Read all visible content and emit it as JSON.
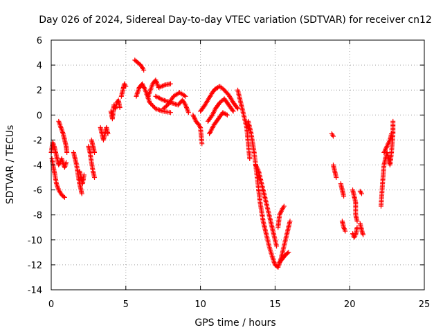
{
  "chart_data": {
    "type": "scatter",
    "title": "Day 026 of 2024, Sidereal Day-to-day VTEC variation (SDTVAR) for receiver cn12",
    "xlabel": "GPS time / hours",
    "ylabel": "SDTVAR / TECUs",
    "xlim": [
      0,
      25
    ],
    "ylim": [
      -14,
      6
    ],
    "xticks": [
      0,
      5,
      10,
      15,
      20,
      25
    ],
    "yticks": [
      -14,
      -12,
      -10,
      -8,
      -6,
      -4,
      -2,
      0,
      2,
      4,
      6
    ],
    "xtick_labels": [
      "0",
      "5",
      "10",
      "15",
      "20",
      "25"
    ],
    "ytick_labels": [
      "-14",
      "-12",
      "-10",
      "-8",
      "-6",
      "-4",
      "-2",
      "0",
      "2",
      "4",
      "6"
    ],
    "grid": true,
    "marker": "+",
    "color": "#ff0000",
    "series": [
      {
        "name": "SDTVAR",
        "segments": [
          [
            [
              0.0,
              -3.0
            ],
            [
              0.1,
              -2.2
            ],
            [
              0.2,
              -2.5
            ],
            [
              0.3,
              -3.0
            ],
            [
              0.4,
              -3.5
            ],
            [
              0.5,
              -4.0
            ],
            [
              0.6,
              -3.8
            ],
            [
              0.7,
              -3.5
            ],
            [
              0.8,
              -3.9
            ],
            [
              0.9,
              -4.2
            ],
            [
              1.0,
              -3.8
            ]
          ],
          [
            [
              0.05,
              -3.5
            ],
            [
              0.15,
              -4.2
            ],
            [
              0.25,
              -4.8
            ],
            [
              0.35,
              -5.5
            ],
            [
              0.5,
              -6.0
            ],
            [
              0.7,
              -6.4
            ],
            [
              0.9,
              -6.6
            ]
          ],
          [
            [
              0.5,
              -0.5
            ],
            [
              0.65,
              -1.0
            ],
            [
              0.8,
              -1.5
            ],
            [
              0.9,
              -2.0
            ],
            [
              1.0,
              -2.5
            ],
            [
              1.05,
              -3.0
            ]
          ],
          [
            [
              1.5,
              -3.0
            ],
            [
              1.6,
              -3.5
            ],
            [
              1.7,
              -4.0
            ],
            [
              1.8,
              -4.8
            ],
            [
              1.9,
              -5.5
            ],
            [
              2.0,
              -6.0
            ],
            [
              2.05,
              -6.3
            ]
          ],
          [
            [
              1.9,
              -4.5
            ],
            [
              2.0,
              -5.0
            ],
            [
              2.1,
              -5.5
            ],
            [
              2.2,
              -4.8
            ]
          ],
          [
            [
              2.5,
              -2.5
            ],
            [
              2.6,
              -3.0
            ],
            [
              2.7,
              -3.8
            ],
            [
              2.8,
              -4.5
            ],
            [
              2.9,
              -5.0
            ]
          ],
          [
            [
              2.7,
              -2.0
            ],
            [
              2.8,
              -2.5
            ],
            [
              2.9,
              -3.0
            ]
          ],
          [
            [
              3.3,
              -1.0
            ],
            [
              3.4,
              -1.5
            ],
            [
              3.5,
              -2.0
            ],
            [
              3.6,
              -1.5
            ],
            [
              3.7,
              -1.0
            ],
            [
              3.8,
              -1.5
            ]
          ],
          [
            [
              4.0,
              0.3
            ],
            [
              4.1,
              -0.3
            ],
            [
              4.2,
              0.8
            ],
            [
              4.3,
              0.5
            ],
            [
              4.4,
              1.0
            ],
            [
              4.5,
              1.2
            ],
            [
              4.6,
              0.6
            ]
          ],
          [
            [
              4.7,
              1.5
            ],
            [
              4.8,
              2.0
            ],
            [
              4.9,
              2.5
            ],
            [
              5.0,
              2.3
            ]
          ],
          [
            [
              5.6,
              4.4
            ],
            [
              5.8,
              4.2
            ],
            [
              6.0,
              4.0
            ],
            [
              6.2,
              3.6
            ]
          ],
          [
            [
              5.7,
              1.5
            ],
            [
              5.9,
              2.2
            ],
            [
              6.1,
              2.5
            ],
            [
              6.3,
              2.0
            ],
            [
              6.6,
              1.0
            ],
            [
              7.0,
              0.5
            ],
            [
              7.5,
              0.3
            ],
            [
              8.0,
              0.2
            ]
          ],
          [
            [
              6.5,
              1.5
            ],
            [
              6.8,
              2.5
            ],
            [
              7.0,
              2.8
            ],
            [
              7.2,
              2.2
            ],
            [
              7.6,
              2.4
            ],
            [
              8.0,
              2.5
            ]
          ],
          [
            [
              7.0,
              1.5
            ],
            [
              7.5,
              1.2
            ],
            [
              8.0,
              1.0
            ],
            [
              8.5,
              0.8
            ],
            [
              8.8,
              1.2
            ],
            [
              9.0,
              0.8
            ],
            [
              9.2,
              0.2
            ]
          ],
          [
            [
              7.5,
              0.5
            ],
            [
              7.8,
              0.8
            ],
            [
              8.2,
              1.5
            ],
            [
              8.6,
              1.8
            ],
            [
              9.0,
              1.5
            ]
          ],
          [
            [
              9.5,
              0.0
            ],
            [
              9.7,
              -0.5
            ],
            [
              9.9,
              -0.8
            ],
            [
              10.0,
              -1.0
            ],
            [
              10.1,
              -2.3
            ]
          ],
          [
            [
              10.0,
              0.3
            ],
            [
              10.3,
              0.8
            ],
            [
              10.5,
              1.2
            ],
            [
              10.8,
              1.8
            ],
            [
              11.0,
              2.1
            ],
            [
              11.3,
              2.3
            ],
            [
              11.6,
              2.0
            ],
            [
              11.9,
              1.6
            ],
            [
              12.2,
              1.0
            ],
            [
              12.5,
              0.5
            ]
          ],
          [
            [
              10.5,
              -0.5
            ],
            [
              10.8,
              0.0
            ],
            [
              11.0,
              0.5
            ],
            [
              11.3,
              1.0
            ],
            [
              11.6,
              1.3
            ],
            [
              11.9,
              0.8
            ],
            [
              12.2,
              0.3
            ]
          ],
          [
            [
              10.6,
              -1.5
            ],
            [
              10.9,
              -0.8
            ],
            [
              11.2,
              -0.3
            ],
            [
              11.5,
              0.2
            ],
            [
              11.8,
              0.0
            ]
          ],
          [
            [
              12.5,
              2.0
            ],
            [
              12.7,
              1.0
            ],
            [
              12.9,
              0.0
            ],
            [
              13.1,
              -1.0
            ],
            [
              13.3,
              -3.5
            ]
          ],
          [
            [
              13.2,
              -0.5
            ],
            [
              13.4,
              -1.5
            ],
            [
              13.6,
              -3.0
            ],
            [
              13.8,
              -5.0
            ],
            [
              14.0,
              -7.0
            ],
            [
              14.2,
              -8.5
            ],
            [
              14.4,
              -9.5
            ],
            [
              14.6,
              -10.5
            ],
            [
              14.8,
              -11.3
            ],
            [
              15.0,
              -12.0
            ],
            [
              15.2,
              -12.2
            ],
            [
              15.4,
              -11.5
            ],
            [
              15.6,
              -10.5
            ],
            [
              15.8,
              -9.5
            ],
            [
              16.0,
              -8.5
            ]
          ],
          [
            [
              13.7,
              -4.0
            ],
            [
              13.9,
              -4.5
            ],
            [
              14.1,
              -5.5
            ],
            [
              14.3,
              -6.5
            ],
            [
              14.5,
              -7.5
            ],
            [
              14.7,
              -8.5
            ],
            [
              14.9,
              -9.5
            ],
            [
              15.1,
              -10.5
            ]
          ],
          [
            [
              15.2,
              -9.0
            ],
            [
              15.3,
              -8.0
            ],
            [
              15.5,
              -7.5
            ],
            [
              15.6,
              -7.3
            ]
          ],
          [
            [
              15.3,
              -11.8
            ],
            [
              15.5,
              -11.5
            ],
            [
              15.7,
              -11.2
            ],
            [
              15.9,
              -11.0
            ]
          ],
          [
            [
              18.8,
              -1.5
            ],
            [
              18.9,
              -1.7
            ]
          ],
          [
            [
              18.9,
              -4.0
            ],
            [
              19.0,
              -4.5
            ],
            [
              19.1,
              -5.0
            ]
          ],
          [
            [
              19.4,
              -5.5
            ],
            [
              19.5,
              -6.0
            ],
            [
              19.6,
              -6.5
            ]
          ],
          [
            [
              19.5,
              -8.5
            ],
            [
              19.6,
              -9.0
            ],
            [
              19.7,
              -9.3
            ]
          ],
          [
            [
              20.2,
              -9.5
            ],
            [
              20.3,
              -9.8
            ],
            [
              20.4,
              -9.6
            ],
            [
              20.5,
              -9.0
            ]
          ],
          [
            [
              20.2,
              -6.0
            ],
            [
              20.3,
              -6.5
            ],
            [
              20.4,
              -7.0
            ],
            [
              20.4,
              -8.0
            ],
            [
              20.5,
              -8.5
            ]
          ],
          [
            [
              20.7,
              -6.1
            ],
            [
              20.8,
              -6.3
            ]
          ],
          [
            [
              20.7,
              -8.7
            ],
            [
              20.8,
              -9.2
            ],
            [
              20.9,
              -9.6
            ]
          ],
          [
            [
              22.1,
              -7.3
            ],
            [
              22.2,
              -5.5
            ],
            [
              22.3,
              -4.0
            ],
            [
              22.4,
              -3.5
            ],
            [
              22.5,
              -3.0
            ],
            [
              22.6,
              -3.5
            ],
            [
              22.7,
              -4.0
            ],
            [
              22.8,
              -3.0
            ],
            [
              22.9,
              -1.5
            ],
            [
              22.9,
              -0.5
            ]
          ],
          [
            [
              22.3,
              -3.0
            ],
            [
              22.5,
              -2.5
            ],
            [
              22.7,
              -2.0
            ],
            [
              22.8,
              -1.5
            ]
          ]
        ]
      }
    ]
  }
}
